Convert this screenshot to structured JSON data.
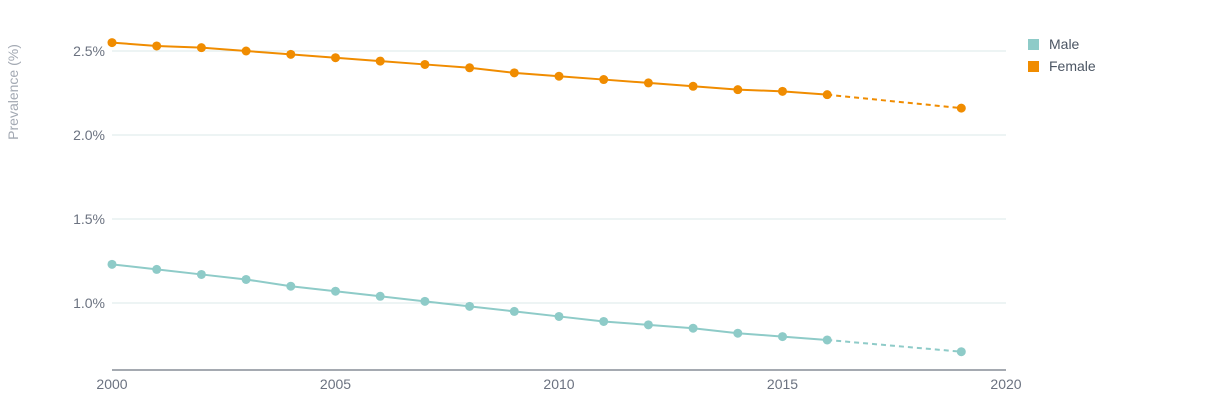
{
  "chart_data": {
    "type": "line",
    "title": "",
    "xlabel": "",
    "ylabel": "Prevalence (%)",
    "xlim": [
      2000,
      2020
    ],
    "ylim": [
      0.6,
      2.6
    ],
    "x_ticks": [
      2000,
      2005,
      2010,
      2015,
      2020
    ],
    "y_ticks": [
      1.0,
      1.5,
      2.0,
      2.5
    ],
    "y_tick_labels": [
      "1.0%",
      "1.5%",
      "2.0%",
      "2.5%"
    ],
    "grid": "horizontal",
    "legend_position": "top-right",
    "series": [
      {
        "name": "Male",
        "color": "#8ecbc8",
        "x": [
          2000,
          2001,
          2002,
          2003,
          2004,
          2005,
          2006,
          2007,
          2008,
          2009,
          2010,
          2011,
          2012,
          2013,
          2014,
          2015,
          2016,
          2019
        ],
        "values": [
          1.23,
          1.2,
          1.17,
          1.14,
          1.1,
          1.07,
          1.04,
          1.01,
          0.98,
          0.95,
          0.92,
          0.89,
          0.87,
          0.85,
          0.82,
          0.8,
          0.78,
          0.71
        ],
        "projected_from_index": 16
      },
      {
        "name": "Female",
        "color": "#f08c00",
        "x": [
          2000,
          2001,
          2002,
          2003,
          2004,
          2005,
          2006,
          2007,
          2008,
          2009,
          2010,
          2011,
          2012,
          2013,
          2014,
          2015,
          2016,
          2019
        ],
        "values": [
          2.55,
          2.53,
          2.52,
          2.5,
          2.48,
          2.46,
          2.44,
          2.42,
          2.4,
          2.37,
          2.35,
          2.33,
          2.31,
          2.29,
          2.27,
          2.26,
          2.24,
          2.16
        ],
        "projected_from_index": 16
      }
    ]
  }
}
